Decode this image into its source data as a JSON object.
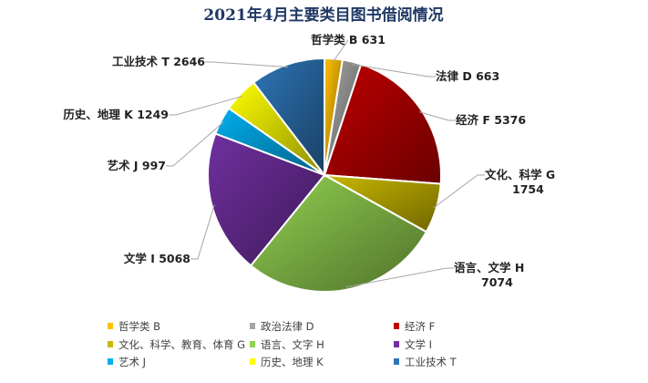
{
  "chart_data": {
    "type": "pie",
    "title": "2021年4月主要类目图书借阅情况",
    "slices": [
      {
        "legend": "哲学类 B",
        "label": "哲学类 B 631",
        "value": 631,
        "color": "#ffc000"
      },
      {
        "legend": "政治法律 D",
        "label": "法律 D 663",
        "value": 663,
        "color": "#a5a5a5"
      },
      {
        "legend": "经济 F",
        "label": "经济 F 5376",
        "value": 5376,
        "color": "#c00000"
      },
      {
        "legend": "文化、科学、教育、体育 G",
        "label": "文化、科学 G 1754",
        "value": 1754,
        "color": "#c9b800"
      },
      {
        "legend": "语言、文字 H",
        "label": "语言、文学 H 7074",
        "value": 7074,
        "color": "#92d050"
      },
      {
        "legend": "文学 I",
        "label": "文学 I 5068",
        "value": 5068,
        "color": "#7030a0"
      },
      {
        "legend": "艺术 J",
        "label": "艺术 J 997",
        "value": 997,
        "color": "#00b0f0"
      },
      {
        "legend": "历史、地理 K",
        "label": "历史、地理 K 1249",
        "value": 1249,
        "color": "#ffff00"
      },
      {
        "legend": "工业技术 T",
        "label": "工业技术 T 2646",
        "value": 2646,
        "color": "#2e75b6"
      }
    ],
    "legend_position": "bottom"
  }
}
